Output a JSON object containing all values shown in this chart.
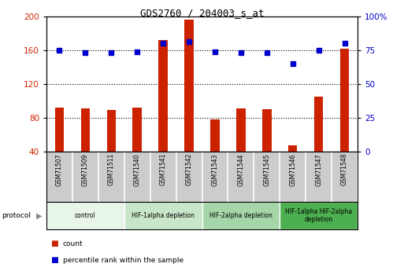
{
  "title": "GDS2760 / 204003_s_at",
  "samples": [
    "GSM71507",
    "GSM71509",
    "GSM71511",
    "GSM71540",
    "GSM71541",
    "GSM71542",
    "GSM71543",
    "GSM71544",
    "GSM71545",
    "GSM71546",
    "GSM71547",
    "GSM71548"
  ],
  "counts": [
    92,
    91,
    89,
    92,
    172,
    196,
    78,
    91,
    90,
    48,
    105,
    162
  ],
  "percentiles": [
    75,
    73,
    73,
    74,
    80,
    81,
    74,
    73,
    73,
    65,
    75,
    80
  ],
  "bar_color": "#cc2200",
  "dot_color": "#0000cc",
  "ylim_left": [
    40,
    200
  ],
  "ylim_right": [
    0,
    100
  ],
  "yticks_left": [
    40,
    80,
    120,
    160,
    200
  ],
  "yticks_right": [
    0,
    25,
    50,
    75,
    100
  ],
  "grid_values": [
    80,
    120,
    160
  ],
  "bar_width": 0.35,
  "protocols": [
    {
      "label": "control",
      "start": 0,
      "end": 3,
      "color": "#e8f5e9"
    },
    {
      "label": "HIF-1alpha depletion",
      "start": 3,
      "end": 6,
      "color": "#c8e6c9"
    },
    {
      "label": "HIF-2alpha depletion",
      "start": 6,
      "end": 9,
      "color": "#a5d6a7"
    },
    {
      "label": "HIF-1alpha HIF-2alpha\ndepletion",
      "start": 9,
      "end": 12,
      "color": "#4caf50"
    }
  ],
  "legend_red_label": "count",
  "legend_blue_label": "percentile rank within the sample",
  "protocol_label": "protocol",
  "tick_area_color": "#cccccc"
}
